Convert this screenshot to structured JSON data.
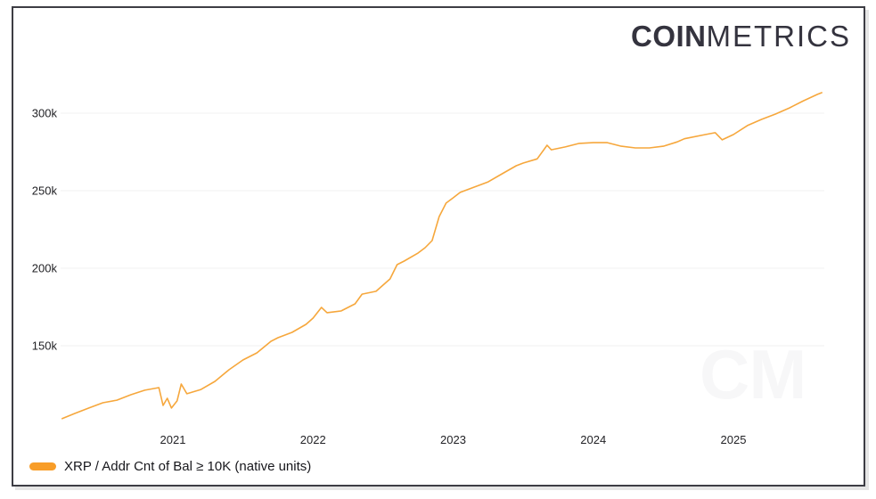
{
  "logo": {
    "bold": "COIN",
    "light": "METRICS"
  },
  "watermark": "CM",
  "legend": {
    "label": "XRP / Addr Cnt of Bal ≥ 10K (native units)",
    "swatch_color": "#f89d28"
  },
  "colors": {
    "line": "#f6a73c",
    "grid": "#f2f2f2",
    "border": "#3d3d44",
    "text": "#222226"
  },
  "chart_data": {
    "type": "line",
    "title": "",
    "xlabel": "",
    "ylabel": "",
    "grid": "horizontal-faint",
    "legend_position": "bottom-left",
    "x_range": [
      2020.15,
      2025.7
    ],
    "y_range": [
      95000,
      320000
    ],
    "x_ticks": [
      {
        "label": "2021",
        "year": 2021
      },
      {
        "label": "2022",
        "year": 2022
      },
      {
        "label": "2023",
        "year": 2023
      },
      {
        "label": "2024",
        "year": 2024
      },
      {
        "label": "2025",
        "year": 2025
      }
    ],
    "y_ticks": [
      {
        "label": "150k",
        "value": 150000
      },
      {
        "label": "200k",
        "value": 200000
      },
      {
        "label": "250k",
        "value": 250000
      },
      {
        "label": "300k",
        "value": 300000
      }
    ],
    "series": [
      {
        "name": "XRP / Addr Cnt of Bal ≥ 10K (native units)",
        "color": "#f6a73c",
        "points": [
          [
            2020.21,
            103000
          ],
          [
            2020.3,
            106300
          ],
          [
            2020.4,
            109800
          ],
          [
            2020.5,
            113200
          ],
          [
            2020.6,
            114900
          ],
          [
            2020.7,
            118400
          ],
          [
            2020.8,
            121300
          ],
          [
            2020.9,
            123000
          ],
          [
            2020.93,
            111500
          ],
          [
            2020.96,
            116100
          ],
          [
            2020.99,
            109800
          ],
          [
            2021.03,
            114400
          ],
          [
            2021.06,
            125300
          ],
          [
            2021.1,
            119000
          ],
          [
            2021.2,
            121800
          ],
          [
            2021.3,
            127000
          ],
          [
            2021.4,
            134500
          ],
          [
            2021.5,
            140800
          ],
          [
            2021.6,
            145400
          ],
          [
            2021.7,
            152900
          ],
          [
            2021.75,
            155200
          ],
          [
            2021.85,
            158600
          ],
          [
            2021.95,
            163800
          ],
          [
            2022.0,
            167800
          ],
          [
            2022.06,
            174700
          ],
          [
            2022.1,
            171300
          ],
          [
            2022.2,
            172400
          ],
          [
            2022.3,
            177000
          ],
          [
            2022.35,
            183300
          ],
          [
            2022.45,
            185100
          ],
          [
            2022.55,
            193100
          ],
          [
            2022.6,
            202300
          ],
          [
            2022.65,
            204600
          ],
          [
            2022.75,
            209800
          ],
          [
            2022.8,
            213200
          ],
          [
            2022.85,
            217800
          ],
          [
            2022.9,
            233300
          ],
          [
            2022.95,
            242000
          ],
          [
            2023.0,
            245400
          ],
          [
            2023.05,
            248900
          ],
          [
            2023.15,
            252300
          ],
          [
            2023.25,
            255700
          ],
          [
            2023.35,
            260900
          ],
          [
            2023.45,
            266100
          ],
          [
            2023.5,
            267800
          ],
          [
            2023.6,
            270500
          ],
          [
            2023.67,
            279300
          ],
          [
            2023.7,
            276400
          ],
          [
            2023.8,
            278200
          ],
          [
            2023.9,
            280500
          ],
          [
            2024.0,
            281000
          ],
          [
            2024.1,
            281000
          ],
          [
            2024.2,
            278700
          ],
          [
            2024.3,
            277600
          ],
          [
            2024.4,
            277600
          ],
          [
            2024.5,
            278700
          ],
          [
            2024.6,
            281500
          ],
          [
            2024.65,
            283500
          ],
          [
            2024.8,
            286200
          ],
          [
            2024.87,
            287400
          ],
          [
            2024.92,
            282800
          ],
          [
            2025.0,
            286200
          ],
          [
            2025.1,
            292000
          ],
          [
            2025.2,
            296000
          ],
          [
            2025.3,
            299400
          ],
          [
            2025.4,
            303400
          ],
          [
            2025.5,
            308000
          ],
          [
            2025.6,
            312100
          ],
          [
            2025.63,
            313200
          ]
        ]
      }
    ]
  }
}
